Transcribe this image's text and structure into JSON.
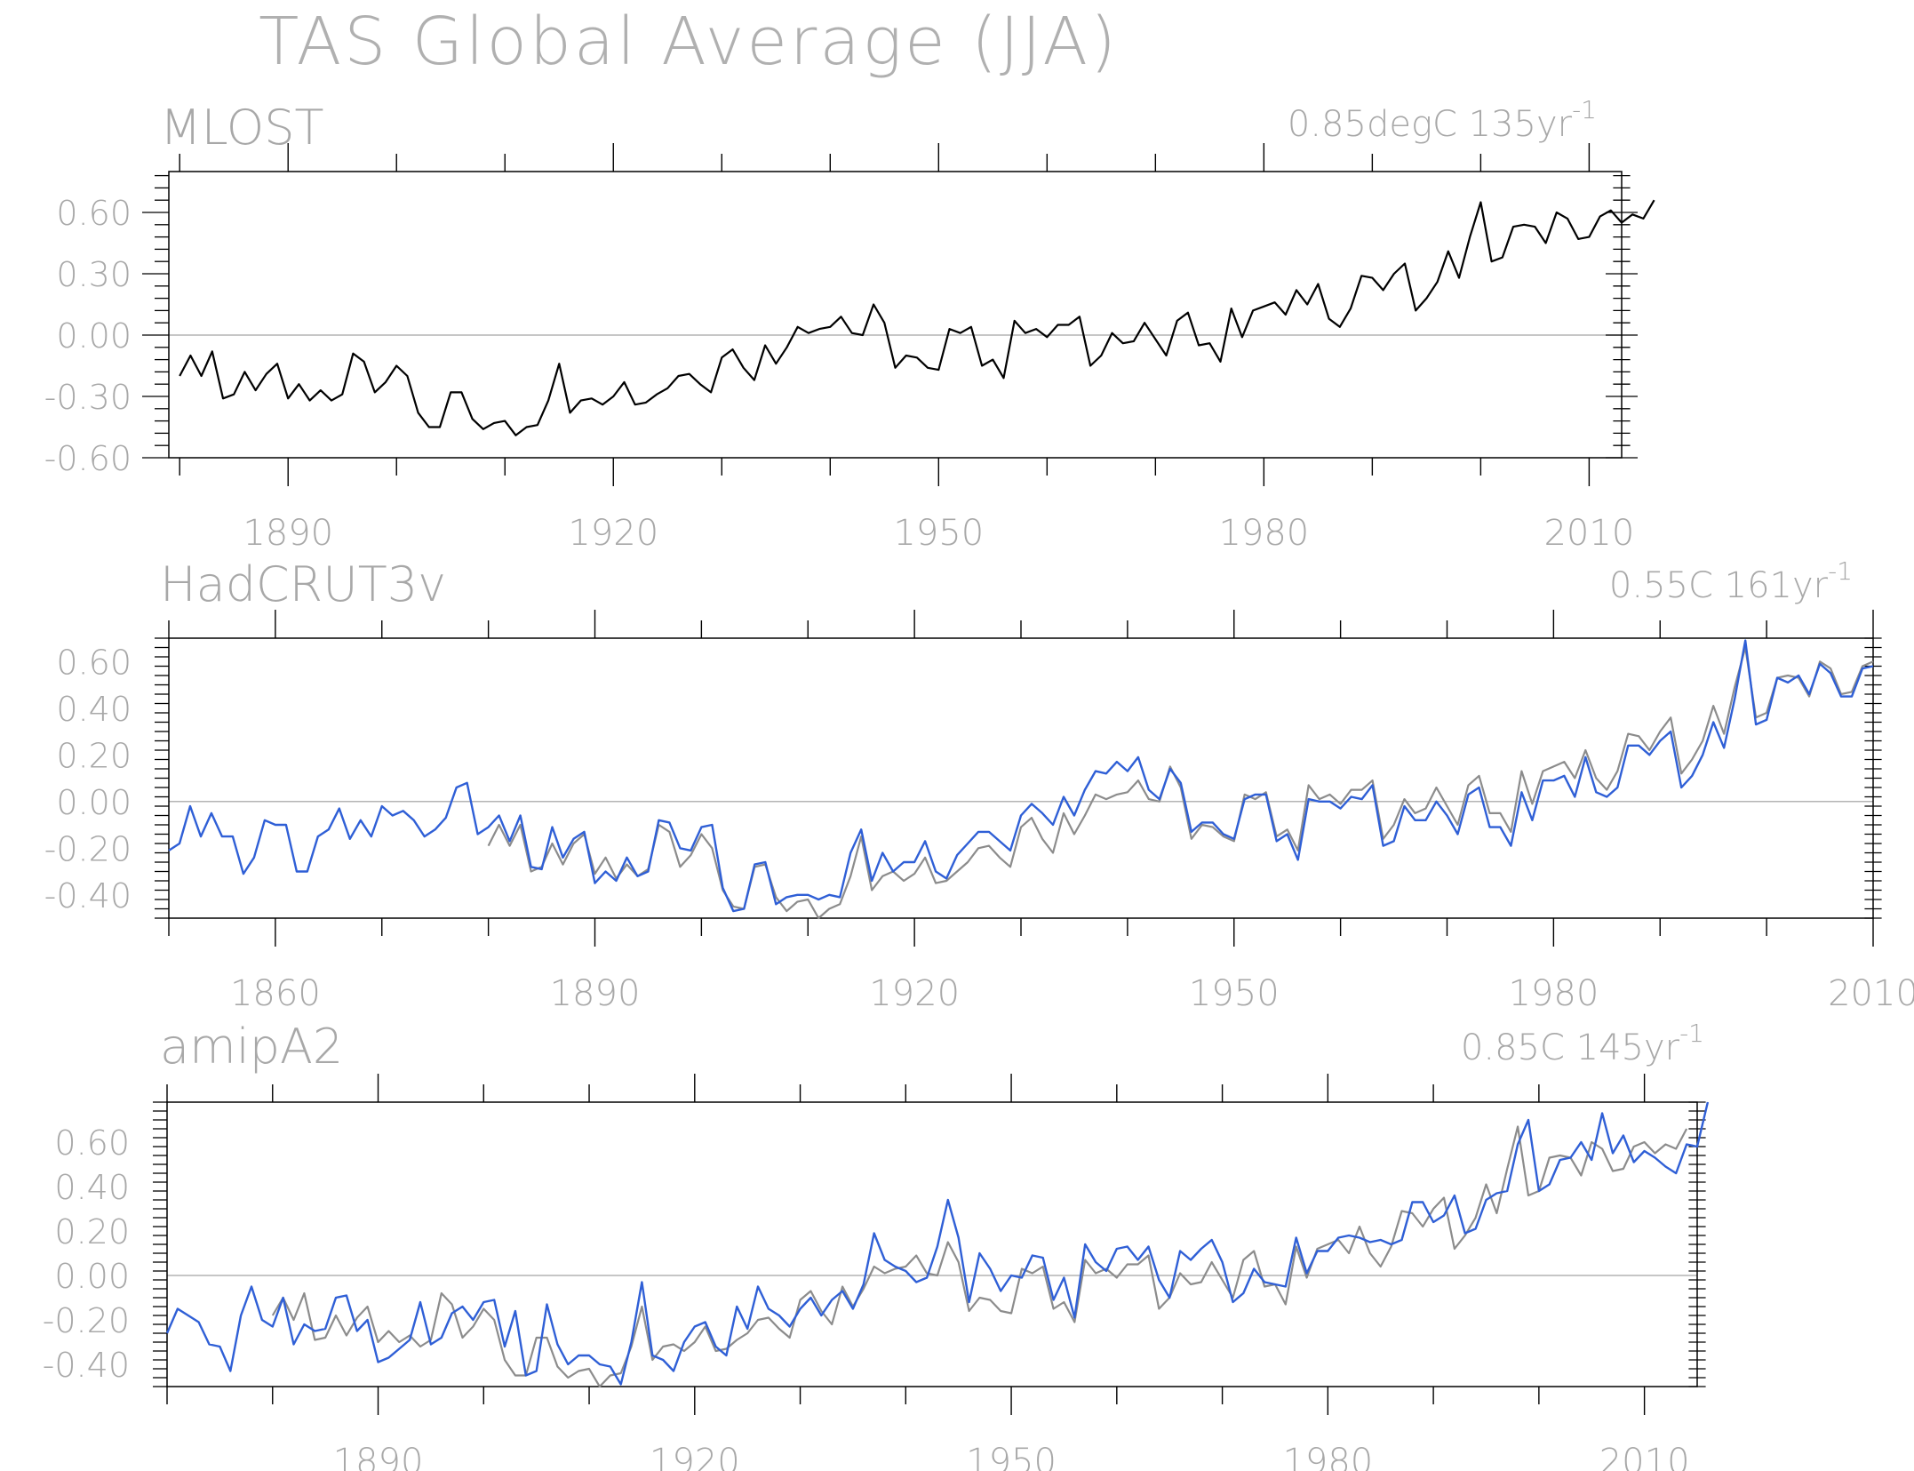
{
  "title": "TAS Global Average (JJA)",
  "colors": {
    "obs": "#8c8c8c",
    "model": "#2f5fd6",
    "black": "#000000",
    "text": "#a8a8a8",
    "zero": "#b4b4b4"
  },
  "chart_data": [
    {
      "type": "line",
      "title": "MLOST",
      "annotation": "0.85degC 135yr",
      "annotation_sup": "-1",
      "xlim": [
        1879,
        2013
      ],
      "ylim": [
        -0.6,
        0.8
      ],
      "yticks": [
        -0.6,
        -0.3,
        0.0,
        0.3,
        0.6
      ],
      "ytick_labels": [
        "-0.60",
        "-0.30",
        "0.00",
        "0.30",
        "0.60"
      ],
      "xticks": [
        1890,
        1920,
        1950,
        1980,
        2010
      ],
      "xtick_labels": [
        "1890",
        "1920",
        "1950",
        "1980",
        "2010"
      ],
      "grid": false,
      "series": [
        {
          "start": 1880,
          "color": "black",
          "values": [
            -0.2,
            -0.1,
            -0.2,
            -0.08,
            -0.31,
            -0.29,
            -0.18,
            -0.27,
            -0.19,
            -0.14,
            -0.31,
            -0.24,
            -0.32,
            -0.27,
            -0.32,
            -0.29,
            -0.09,
            -0.13,
            -0.28,
            -0.23,
            -0.15,
            -0.2,
            -0.38,
            -0.45,
            -0.45,
            -0.28,
            -0.28,
            -0.41,
            -0.46,
            -0.43,
            -0.42,
            -0.49,
            -0.45,
            -0.44,
            -0.32,
            -0.14,
            -0.38,
            -0.32,
            -0.31,
            -0.34,
            -0.3,
            -0.23,
            -0.34,
            -0.33,
            -0.29,
            -0.26,
            -0.2,
            -0.19,
            -0.24,
            -0.28,
            -0.11,
            -0.07,
            -0.16,
            -0.22,
            -0.05,
            -0.14,
            -0.06,
            0.04,
            0.01,
            0.03,
            0.04,
            0.09,
            0.01,
            0.0,
            0.15,
            0.06,
            -0.16,
            -0.1,
            -0.11,
            -0.16,
            -0.17,
            0.03,
            0.01,
            0.04,
            -0.15,
            -0.12,
            -0.21,
            0.07,
            0.01,
            0.03,
            -0.01,
            0.05,
            0.05,
            0.09,
            -0.15,
            -0.1,
            0.01,
            -0.04,
            -0.03,
            0.06,
            -0.02,
            -0.1,
            0.07,
            0.11,
            -0.05,
            -0.04,
            -0.13,
            0.13,
            -0.01,
            0.12,
            0.14,
            0.16,
            0.1,
            0.22,
            0.15,
            0.25,
            0.08,
            0.04,
            0.13,
            0.29,
            0.28,
            0.22,
            0.3,
            0.35,
            0.12,
            0.18,
            0.26,
            0.41,
            0.28,
            0.48,
            0.65,
            0.36,
            0.38,
            0.53,
            0.54,
            0.53,
            0.45,
            0.6,
            0.57,
            0.47,
            0.48,
            0.58,
            0.61,
            0.55,
            0.59,
            0.57,
            0.66
          ]
        }
      ]
    },
    {
      "type": "line",
      "title": "HadCRUT3v",
      "annotation": "0.55C 161yr",
      "annotation_sup": "-1",
      "xlim": [
        1850,
        2010
      ],
      "ylim": [
        -0.5,
        0.7
      ],
      "yticks": [
        -0.4,
        -0.2,
        0.0,
        0.2,
        0.4,
        0.6
      ],
      "ytick_labels": [
        "-0.40",
        "-0.20",
        "0.00",
        "0.20",
        "0.40",
        "0.60"
      ],
      "xticks": [
        1860,
        1890,
        1920,
        1950,
        1980,
        2010
      ],
      "xtick_labels": [
        "1860",
        "1890",
        "1920",
        "1950",
        "1980",
        "2010"
      ],
      "grid": false,
      "series": [
        {
          "start": 1880,
          "color": "obs",
          "values": [
            -0.19,
            -0.1,
            -0.19,
            -0.1,
            -0.3,
            -0.28,
            -0.18,
            -0.27,
            -0.18,
            -0.14,
            -0.31,
            -0.24,
            -0.33,
            -0.27,
            -0.32,
            -0.29,
            -0.1,
            -0.13,
            -0.28,
            -0.23,
            -0.14,
            -0.2,
            -0.38,
            -0.45,
            -0.46,
            -0.28,
            -0.27,
            -0.41,
            -0.47,
            -0.43,
            -0.42,
            -0.5,
            -0.46,
            -0.44,
            -0.32,
            -0.15,
            -0.38,
            -0.32,
            -0.3,
            -0.34,
            -0.31,
            -0.24,
            -0.35,
            -0.34,
            -0.3,
            -0.26,
            -0.2,
            -0.19,
            -0.24,
            -0.28,
            -0.11,
            -0.07,
            -0.16,
            -0.22,
            -0.05,
            -0.14,
            -0.06,
            0.03,
            0.01,
            0.03,
            0.04,
            0.09,
            0.01,
            0.0,
            0.15,
            0.06,
            -0.16,
            -0.1,
            -0.11,
            -0.15,
            -0.17,
            0.03,
            0.01,
            0.04,
            -0.15,
            -0.12,
            -0.21,
            0.07,
            0.01,
            0.03,
            -0.01,
            0.05,
            0.05,
            0.09,
            -0.16,
            -0.1,
            0.01,
            -0.05,
            -0.03,
            0.06,
            -0.02,
            -0.1,
            0.07,
            0.11,
            -0.05,
            -0.05,
            -0.13,
            0.13,
            -0.01,
            0.13,
            0.15,
            0.17,
            0.1,
            0.22,
            0.1,
            0.05,
            0.13,
            0.29,
            0.28,
            0.22,
            0.3,
            0.36,
            0.12,
            0.18,
            0.26,
            0.41,
            0.29,
            0.49,
            0.66,
            0.36,
            0.38,
            0.53,
            0.54,
            0.53,
            0.45,
            0.6,
            0.57,
            0.46,
            0.47,
            0.58,
            0.6
          ]
        },
        {
          "start": 1850,
          "color": "model",
          "values": [
            -0.21,
            -0.18,
            -0.02,
            -0.15,
            -0.05,
            -0.15,
            -0.15,
            -0.31,
            -0.24,
            -0.08,
            -0.1,
            -0.1,
            -0.3,
            -0.3,
            -0.15,
            -0.12,
            -0.03,
            -0.16,
            -0.08,
            -0.15,
            -0.02,
            -0.06,
            -0.04,
            -0.08,
            -0.15,
            -0.12,
            -0.07,
            0.06,
            0.08,
            -0.14,
            -0.11,
            -0.06,
            -0.17,
            -0.06,
            -0.28,
            -0.29,
            -0.11,
            -0.24,
            -0.16,
            -0.13,
            -0.35,
            -0.3,
            -0.34,
            -0.24,
            -0.32,
            -0.3,
            -0.08,
            -0.09,
            -0.2,
            -0.21,
            -0.11,
            -0.1,
            -0.37,
            -0.47,
            -0.46,
            -0.27,
            -0.26,
            -0.44,
            -0.41,
            -0.4,
            -0.4,
            -0.42,
            -0.4,
            -0.41,
            -0.22,
            -0.12,
            -0.34,
            -0.22,
            -0.3,
            -0.26,
            -0.26,
            -0.17,
            -0.3,
            -0.33,
            -0.23,
            -0.18,
            -0.13,
            -0.13,
            -0.17,
            -0.21,
            -0.06,
            -0.01,
            -0.05,
            -0.1,
            0.02,
            -0.06,
            0.05,
            0.13,
            0.12,
            0.17,
            0.13,
            0.19,
            0.05,
            0.01,
            0.14,
            0.08,
            -0.13,
            -0.09,
            -0.09,
            -0.14,
            -0.16,
            0.01,
            0.03,
            0.03,
            -0.17,
            -0.14,
            -0.25,
            0.01,
            0.0,
            0.0,
            -0.03,
            0.02,
            0.01,
            0.07,
            -0.19,
            -0.17,
            -0.02,
            -0.08,
            -0.08,
            0.0,
            -0.06,
            -0.14,
            0.03,
            0.06,
            -0.11,
            -0.11,
            -0.19,
            0.04,
            -0.08,
            0.09,
            0.09,
            0.11,
            0.02,
            0.19,
            0.04,
            0.02,
            0.06,
            0.24,
            0.24,
            0.2,
            0.26,
            0.3,
            0.06,
            0.11,
            0.2,
            0.34,
            0.23,
            0.44,
            0.69,
            0.33,
            0.35,
            0.53,
            0.51,
            0.54,
            0.46,
            0.59,
            0.55,
            0.45,
            0.45,
            0.57,
            0.58
          ]
        }
      ]
    },
    {
      "type": "line",
      "title": "amipA2",
      "annotation": "0.85C 145yr",
      "annotation_sup": "-1",
      "xlim": [
        1870,
        2015
      ],
      "ylim": [
        -0.5,
        0.78
      ],
      "yticks": [
        -0.4,
        -0.2,
        0.0,
        0.2,
        0.4,
        0.6
      ],
      "ytick_labels": [
        "-0.40",
        "-0.20",
        "0.00",
        "0.20",
        "0.40",
        "0.60"
      ],
      "xticks": [
        1890,
        1920,
        1950,
        1980,
        2010
      ],
      "xtick_labels": [
        "1890",
        "1920",
        "1950",
        "1980",
        "2010"
      ],
      "grid": false,
      "series": [
        {
          "start": 1880,
          "color": "obs",
          "values": [
            -0.18,
            -0.1,
            -0.2,
            -0.08,
            -0.29,
            -0.28,
            -0.18,
            -0.27,
            -0.19,
            -0.14,
            -0.3,
            -0.25,
            -0.3,
            -0.27,
            -0.32,
            -0.29,
            -0.08,
            -0.13,
            -0.28,
            -0.23,
            -0.15,
            -0.2,
            -0.38,
            -0.45,
            -0.45,
            -0.28,
            -0.28,
            -0.41,
            -0.46,
            -0.43,
            -0.42,
            -0.5,
            -0.45,
            -0.44,
            -0.32,
            -0.14,
            -0.38,
            -0.32,
            -0.31,
            -0.34,
            -0.3,
            -0.23,
            -0.34,
            -0.33,
            -0.29,
            -0.26,
            -0.2,
            -0.19,
            -0.24,
            -0.28,
            -0.11,
            -0.07,
            -0.16,
            -0.22,
            -0.05,
            -0.14,
            -0.06,
            0.04,
            0.01,
            0.03,
            0.04,
            0.09,
            0.01,
            0.0,
            0.15,
            0.06,
            -0.16,
            -0.1,
            -0.11,
            -0.16,
            -0.17,
            0.03,
            0.01,
            0.04,
            -0.15,
            -0.12,
            -0.21,
            0.07,
            0.01,
            0.03,
            -0.01,
            0.05,
            0.05,
            0.09,
            -0.15,
            -0.1,
            0.01,
            -0.04,
            -0.03,
            0.06,
            -0.02,
            -0.1,
            0.07,
            0.11,
            -0.05,
            -0.04,
            -0.13,
            0.13,
            -0.01,
            0.12,
            0.14,
            0.16,
            0.1,
            0.22,
            0.1,
            0.04,
            0.13,
            0.29,
            0.28,
            0.22,
            0.3,
            0.35,
            0.12,
            0.18,
            0.26,
            0.41,
            0.28,
            0.48,
            0.67,
            0.36,
            0.38,
            0.53,
            0.54,
            0.53,
            0.45,
            0.6,
            0.57,
            0.47,
            0.48,
            0.58,
            0.6,
            0.55,
            0.59,
            0.57,
            0.66
          ]
        },
        {
          "start": 1870,
          "color": "model",
          "values": [
            -0.26,
            -0.15,
            -0.18,
            -0.21,
            -0.31,
            -0.32,
            -0.43,
            -0.18,
            -0.05,
            -0.2,
            -0.23,
            -0.1,
            -0.31,
            -0.22,
            -0.25,
            -0.24,
            -0.1,
            -0.09,
            -0.25,
            -0.2,
            -0.39,
            -0.37,
            -0.33,
            -0.29,
            -0.12,
            -0.31,
            -0.28,
            -0.17,
            -0.14,
            -0.2,
            -0.12,
            -0.11,
            -0.32,
            -0.16,
            -0.45,
            -0.43,
            -0.13,
            -0.31,
            -0.4,
            -0.36,
            -0.36,
            -0.4,
            -0.41,
            -0.49,
            -0.3,
            -0.03,
            -0.36,
            -0.38,
            -0.43,
            -0.3,
            -0.23,
            -0.21,
            -0.32,
            -0.36,
            -0.14,
            -0.24,
            -0.05,
            -0.15,
            -0.18,
            -0.23,
            -0.15,
            -0.1,
            -0.18,
            -0.11,
            -0.07,
            -0.15,
            -0.04,
            0.19,
            0.07,
            0.04,
            0.02,
            -0.03,
            -0.01,
            0.13,
            0.34,
            0.17,
            -0.12,
            0.1,
            0.03,
            -0.07,
            0.0,
            -0.01,
            0.09,
            0.08,
            -0.11,
            -0.01,
            -0.19,
            0.14,
            0.06,
            0.02,
            0.12,
            0.13,
            0.07,
            0.13,
            -0.02,
            -0.1,
            0.11,
            0.07,
            0.12,
            0.16,
            0.06,
            -0.12,
            -0.08,
            0.03,
            -0.03,
            -0.04,
            -0.05,
            0.17,
            0.01,
            0.11,
            0.11,
            0.17,
            0.18,
            0.17,
            0.15,
            0.16,
            0.14,
            0.16,
            0.33,
            0.33,
            0.24,
            0.27,
            0.36,
            0.19,
            0.21,
            0.34,
            0.37,
            0.38,
            0.59,
            0.7,
            0.38,
            0.41,
            0.52,
            0.53,
            0.6,
            0.52,
            0.73,
            0.55,
            0.63,
            0.51,
            0.56,
            0.53,
            0.49,
            0.46,
            0.59,
            0.58,
            0.78
          ]
        }
      ]
    }
  ]
}
